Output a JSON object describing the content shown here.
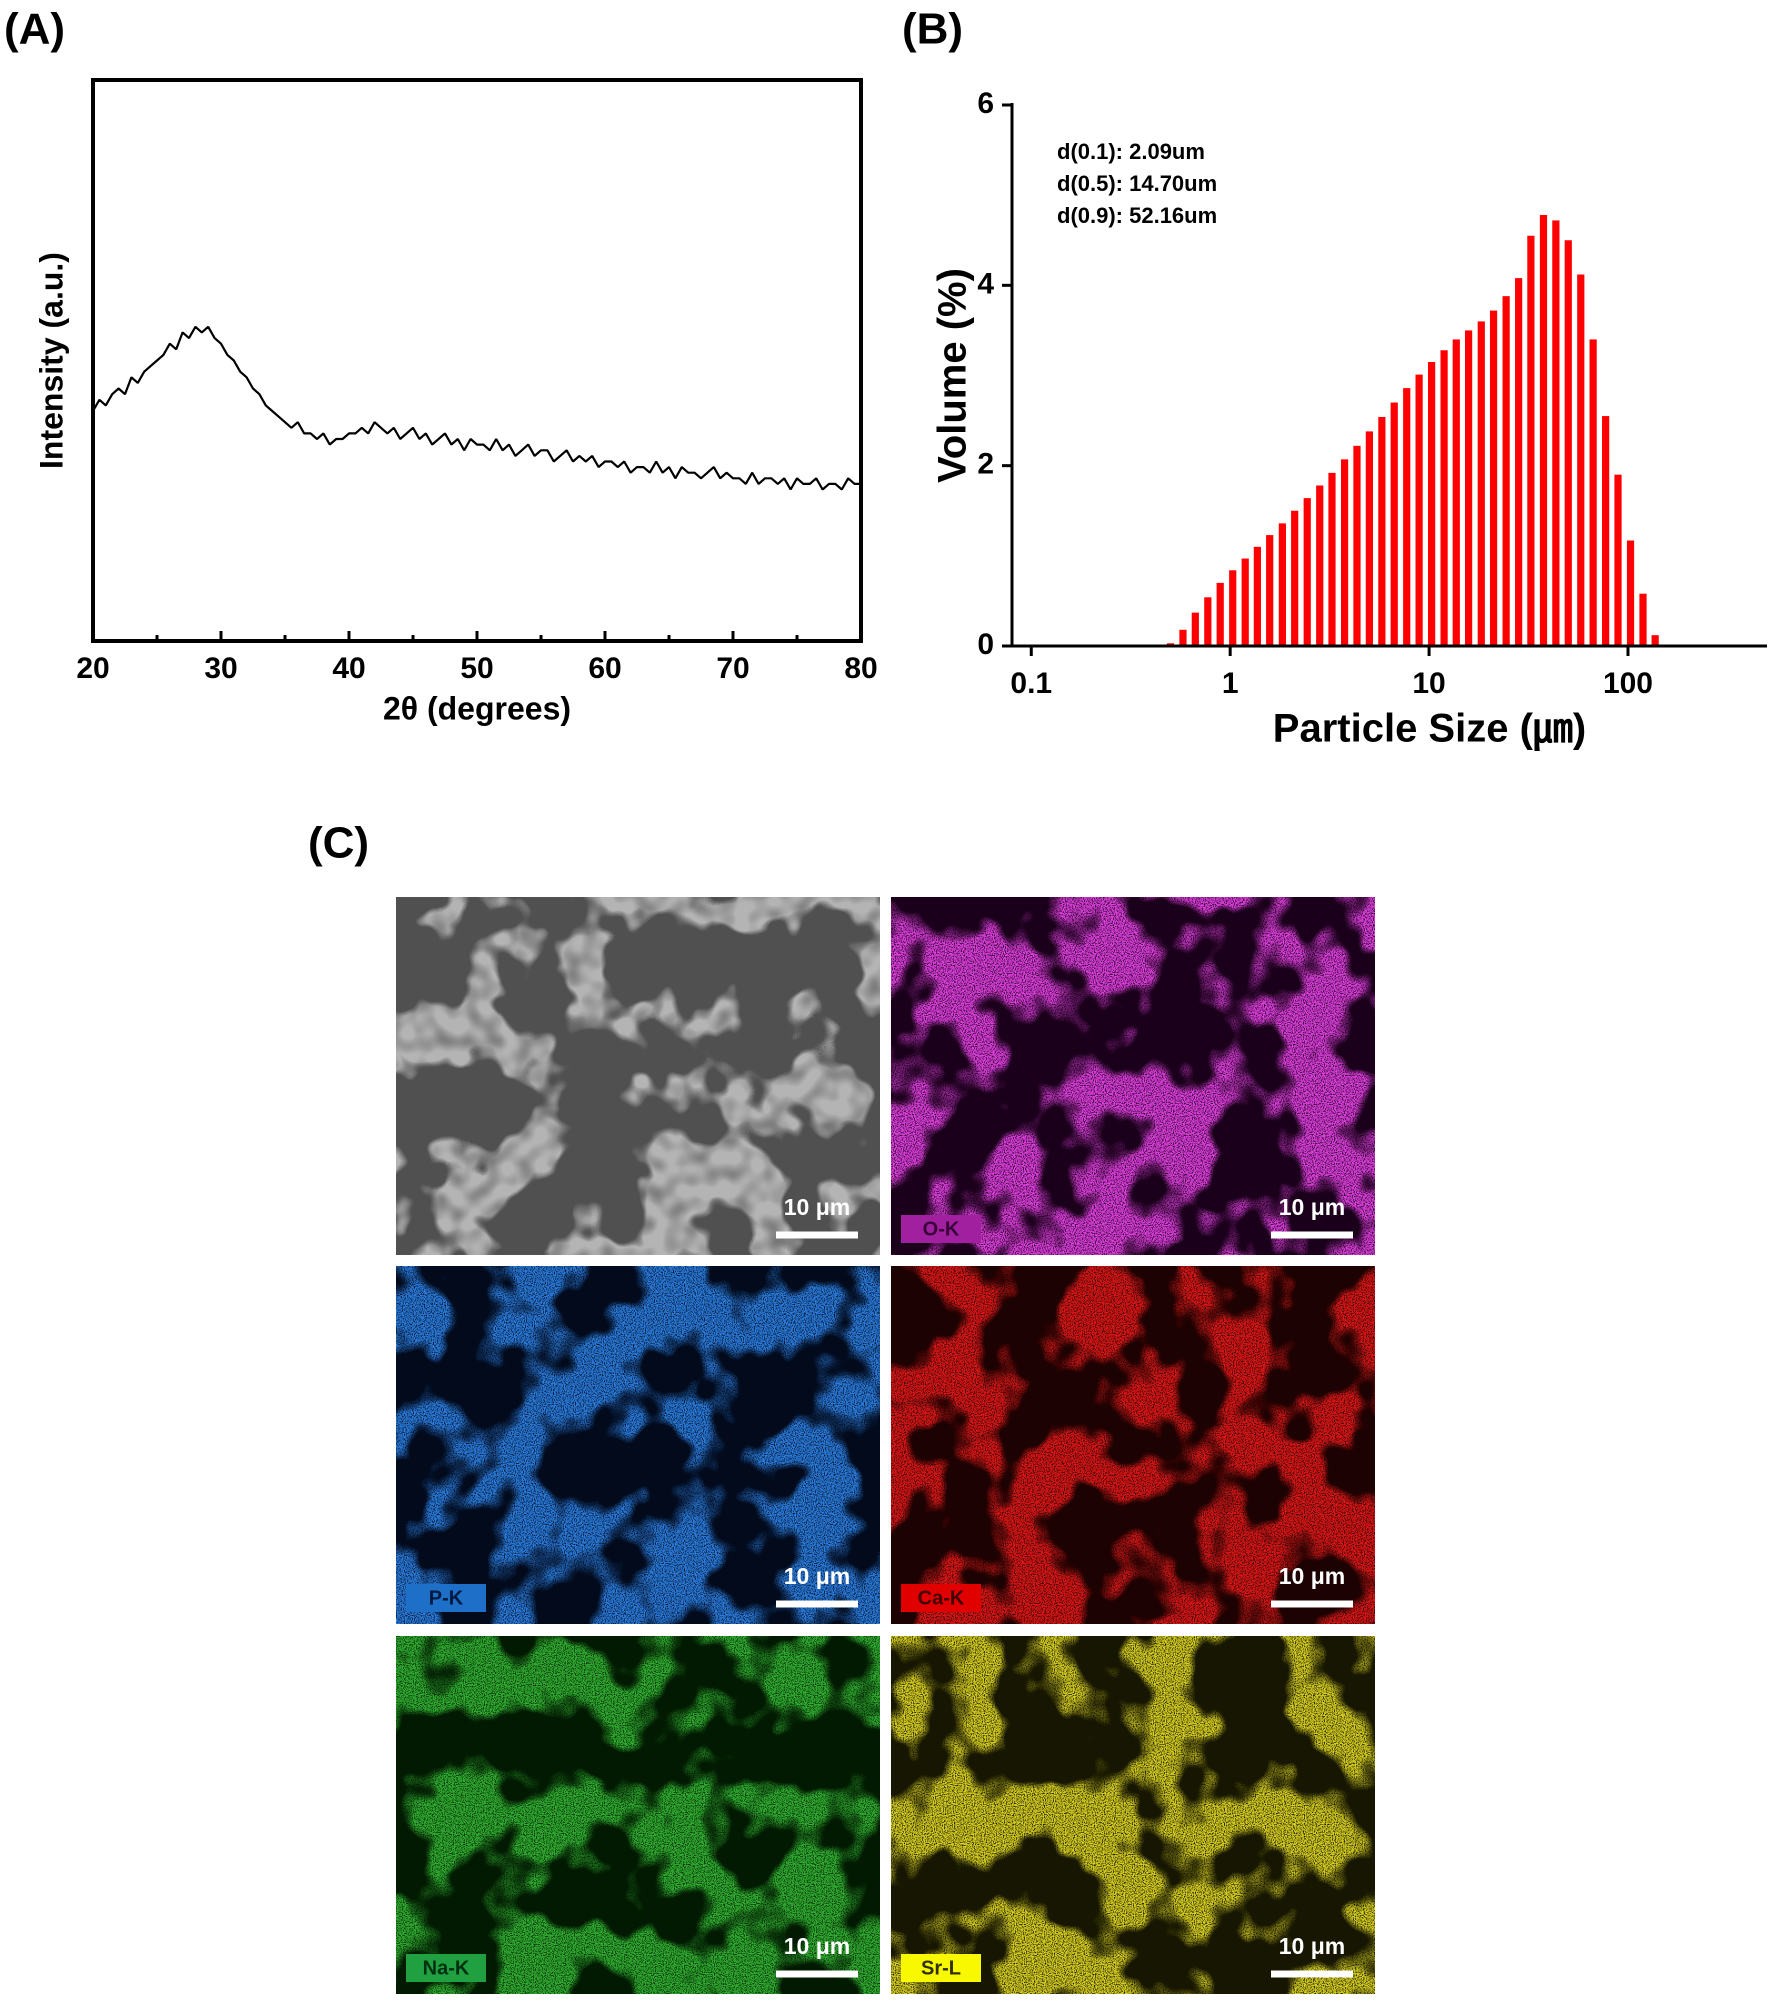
{
  "chart_data": [
    {
      "type": "line",
      "panel_label": "(A)",
      "x_label": "2θ (degrees)",
      "y_label": "Intensity (a.u.)",
      "color": "#000000",
      "xlim": [
        20,
        80
      ],
      "xticks": [
        20,
        30,
        40,
        50,
        60,
        70,
        80
      ],
      "minor_xticks": [
        25,
        35,
        45,
        55,
        65,
        75
      ],
      "ylim": [
        0,
        100
      ],
      "x": [
        20,
        20.5,
        21,
        21.5,
        22,
        22.5,
        23,
        23.5,
        24,
        24.5,
        25,
        25.5,
        26,
        26.5,
        27,
        27.5,
        28,
        28.5,
        29,
        29.5,
        30,
        30.5,
        31,
        31.5,
        32,
        32.5,
        33,
        33.5,
        34,
        34.5,
        35,
        35.5,
        36,
        36.5,
        37,
        37.5,
        38,
        38.5,
        39,
        39.5,
        40,
        40.5,
        41,
        41.5,
        42,
        42.5,
        43,
        43.5,
        44,
        44.5,
        45,
        45.5,
        46,
        46.5,
        47,
        47.5,
        48,
        48.5,
        49,
        49.5,
        50,
        50.5,
        51,
        51.5,
        52,
        52.5,
        53,
        53.5,
        54,
        54.5,
        55,
        55.5,
        56,
        56.5,
        57,
        57.5,
        58,
        58.5,
        59,
        59.5,
        60,
        60.5,
        61,
        61.5,
        62,
        62.5,
        63,
        63.5,
        64,
        64.5,
        65,
        65.5,
        66,
        66.5,
        67,
        67.5,
        68,
        68.5,
        69,
        69.5,
        70,
        70.5,
        71,
        71.5,
        72,
        72.5,
        73,
        73.5,
        74,
        74.5,
        75,
        75.5,
        76,
        76.5,
        77,
        77.5,
        78,
        78.5,
        79,
        79.5,
        80
      ],
      "values": [
        41,
        43,
        42,
        44,
        45,
        44,
        47,
        46,
        48,
        49,
        50,
        51,
        53,
        52,
        55,
        54,
        56,
        55,
        56,
        54,
        53,
        51,
        50,
        48,
        47,
        45,
        44,
        42,
        41,
        40,
        39,
        38,
        39,
        37,
        37,
        36,
        37,
        35,
        36,
        36,
        37,
        37,
        38,
        37,
        39,
        38,
        37,
        38,
        36,
        37,
        38,
        36,
        37,
        35,
        36,
        37,
        35,
        36,
        34,
        36,
        35,
        35,
        34,
        36,
        34,
        35,
        33,
        34,
        35,
        33,
        34,
        34,
        32,
        33,
        34,
        32,
        33,
        32,
        33,
        31,
        32,
        32,
        31,
        32,
        30,
        31,
        31,
        30,
        32,
        30,
        31,
        29,
        31,
        30,
        30,
        29,
        30,
        31,
        29,
        30,
        29,
        29,
        28,
        30,
        28,
        29,
        29,
        28,
        29,
        27,
        29,
        28,
        28,
        29,
        27,
        28,
        28,
        27,
        29,
        28,
        28
      ]
    },
    {
      "type": "bar",
      "panel_label": "(B)",
      "x_label": "Particle Size (㎛)",
      "y_label": "Volume (%)",
      "color": "#ff0000",
      "xscale": "log",
      "xlim": [
        0.08,
        500
      ],
      "xticks": [
        0.1,
        1,
        10,
        100
      ],
      "ylim": [
        0,
        6
      ],
      "yticks": [
        0,
        2,
        4,
        6
      ],
      "annotations": [
        "d(0.1): 2.09um",
        "d(0.5): 14.70um",
        "d(0.9): 52.16um"
      ],
      "x": [
        0.501,
        0.579,
        0.668,
        0.772,
        0.891,
        1.03,
        1.19,
        1.37,
        1.58,
        1.83,
        2.11,
        2.44,
        2.82,
        3.25,
        3.76,
        4.34,
        5.01,
        5.79,
        6.68,
        7.72,
        8.91,
        10.3,
        11.9,
        13.7,
        15.8,
        18.3,
        21.1,
        24.4,
        28.2,
        32.5,
        37.6,
        43.4,
        50.1,
        57.9,
        66.8,
        77.2,
        89.1,
        103,
        119,
        137
      ],
      "values": [
        0.03,
        0.18,
        0.37,
        0.54,
        0.7,
        0.84,
        0.97,
        1.1,
        1.23,
        1.36,
        1.5,
        1.64,
        1.78,
        1.92,
        2.07,
        2.22,
        2.38,
        2.54,
        2.7,
        2.86,
        3.01,
        3.15,
        3.28,
        3.4,
        3.5,
        3.6,
        3.72,
        3.88,
        4.08,
        4.55,
        4.78,
        4.72,
        4.5,
        4.12,
        3.4,
        2.55,
        1.9,
        1.17,
        0.58,
        0.12
      ]
    }
  ],
  "panel_c": {
    "label": "(C)",
    "images": [
      {
        "scale_bar": "10 μm",
        "color": "#b4b4b4",
        "background": "#505050"
      },
      {
        "element": "O-K",
        "scale_bar": "10 μm",
        "color": "#e040e0",
        "background": "#1a001a",
        "tag_color": "#a020a0",
        "tag_text": "#3a003a"
      },
      {
        "element": "P-K",
        "scale_bar": "10 μm",
        "color": "#2a7ee0",
        "background": "#020a1c",
        "tag_color": "#1e6fc8",
        "tag_text": "#001a40"
      },
      {
        "element": "Ca-K",
        "scale_bar": "10 μm",
        "color": "#e01818",
        "background": "#1c0202",
        "tag_color": "#e00000",
        "tag_text": "#400000"
      },
      {
        "element": "Na-K",
        "scale_bar": "10 μm",
        "color": "#30b030",
        "background": "#021a02",
        "tag_color": "#20a040",
        "tag_text": "#003010"
      },
      {
        "element": "Sr-L",
        "scale_bar": "10 μm",
        "color": "#d8d020",
        "background": "#161602",
        "tag_color": "#f8f800",
        "tag_text": "#303000"
      }
    ]
  }
}
